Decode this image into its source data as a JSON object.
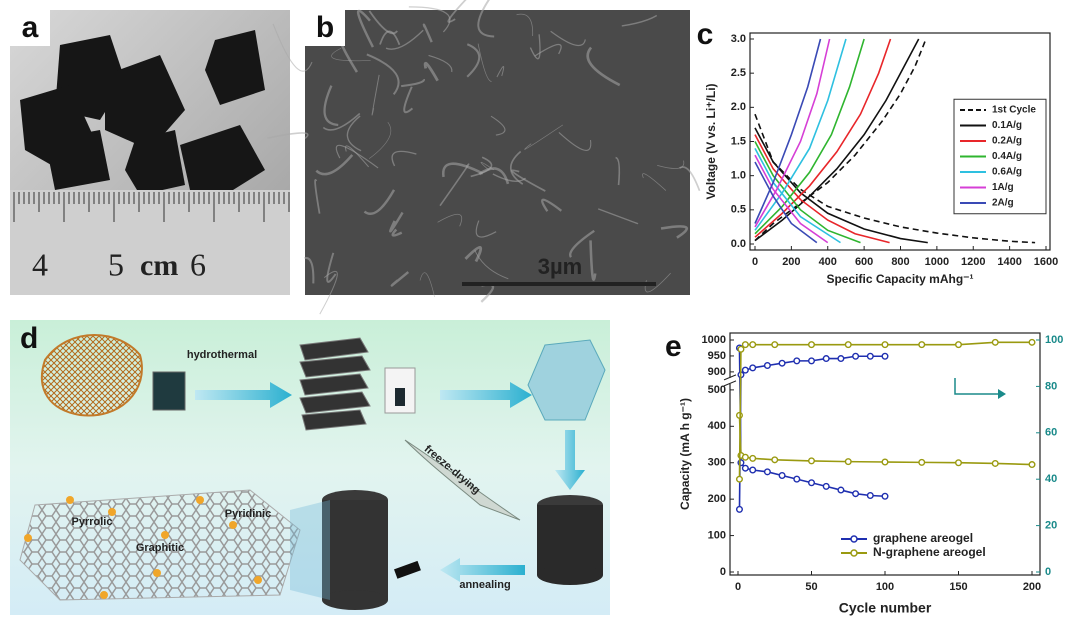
{
  "panels": {
    "a": {
      "label": "a",
      "ruler": [
        "4",
        "5",
        "cm",
        "6"
      ]
    },
    "b": {
      "label": "b",
      "scale_bar": "3µm"
    },
    "c": {
      "label": "c"
    },
    "d": {
      "label": "d",
      "steps": [
        "hydrothermal",
        "freeze-drying",
        "annealing"
      ],
      "sites": [
        "Pyrrolic",
        "Graphitic",
        "Pyridinic"
      ]
    },
    "e": {
      "label": "e"
    }
  },
  "chart_data": [
    {
      "type": "line",
      "xlabel": "Specific Capacity mAhg⁻¹",
      "ylabel": "Voltage (V vs. Li⁺/Li)",
      "xlim": [
        0,
        1600
      ],
      "xticks": [
        0,
        200,
        400,
        600,
        800,
        1000,
        1200,
        1400,
        1600
      ],
      "ylim": [
        0,
        3
      ],
      "yticks": [
        {
          "value": 0,
          "label": "0.0"
        },
        0.5,
        {
          "value": 1,
          "label": "1.0"
        },
        1.5,
        {
          "value": 2,
          "label": "2.0"
        },
        2.5,
        {
          "value": 3,
          "label": "3.0"
        }
      ],
      "legend": "center right",
      "series": [
        {
          "name": "1st Cycle",
          "color": "#111111",
          "dash": true,
          "x": [
            0,
            100,
            250,
            400,
            600,
            800,
            1000,
            1200,
            1400,
            1540,
            null,
            0,
            100,
            250,
            400,
            550,
            700,
            800,
            880,
            940
          ],
          "values": [
            1.9,
            1.2,
            0.8,
            0.55,
            0.38,
            0.25,
            0.16,
            0.09,
            0.04,
            0.02,
            null,
            0.05,
            0.3,
            0.6,
            0.9,
            1.3,
            1.8,
            2.2,
            2.6,
            3.0
          ]
        },
        {
          "name": "0.1A/g",
          "color": "#111111",
          "x": [
            0,
            100,
            250,
            400,
            600,
            800,
            950,
            null,
            0,
            150,
            300,
            450,
            600,
            720,
            820,
            900
          ],
          "values": [
            1.7,
            1.2,
            0.75,
            0.45,
            0.22,
            0.08,
            0.02,
            null,
            0.05,
            0.35,
            0.7,
            1.1,
            1.6,
            2.1,
            2.6,
            3.0
          ]
        },
        {
          "name": "0.2A/g",
          "color": "#e8262a",
          "x": [
            0,
            100,
            250,
            400,
            550,
            740,
            null,
            0,
            150,
            300,
            450,
            580,
            680,
            745
          ],
          "values": [
            1.6,
            1.1,
            0.65,
            0.35,
            0.15,
            0.02,
            null,
            0.1,
            0.45,
            0.85,
            1.35,
            1.9,
            2.5,
            3.0
          ]
        },
        {
          "name": "0.4A/g",
          "color": "#2fb52f",
          "x": [
            0,
            100,
            250,
            400,
            580,
            null,
            0,
            150,
            300,
            420,
            520,
            600
          ],
          "values": [
            1.5,
            1.0,
            0.5,
            0.2,
            0.02,
            null,
            0.15,
            0.55,
            1.05,
            1.6,
            2.3,
            3.0
          ]
        },
        {
          "name": "0.6A/g",
          "color": "#2ec0e0",
          "x": [
            0,
            100,
            250,
            470,
            null,
            0,
            150,
            300,
            400,
            500
          ],
          "values": [
            1.4,
            0.9,
            0.4,
            0.02,
            null,
            0.2,
            0.75,
            1.4,
            2.1,
            3.0
          ]
        },
        {
          "name": "1A/g",
          "color": "#d63fd6",
          "x": [
            0,
            100,
            250,
            400,
            null,
            0,
            120,
            250,
            340,
            410
          ],
          "values": [
            1.3,
            0.8,
            0.3,
            0.02,
            null,
            0.25,
            0.8,
            1.5,
            2.2,
            3.0
          ]
        },
        {
          "name": "2A/g",
          "color": "#3a4ab5",
          "x": [
            0,
            100,
            200,
            340,
            null,
            0,
            100,
            200,
            290,
            360
          ],
          "values": [
            1.2,
            0.7,
            0.3,
            0.02,
            null,
            0.3,
            0.9,
            1.6,
            2.3,
            3.0
          ]
        }
      ]
    },
    {
      "type": "line",
      "xlabel": "Cycle number",
      "ylabel": "Capacity (mA h g⁻¹)",
      "xlim": [
        0,
        200
      ],
      "xticks": [
        0,
        50,
        100,
        150,
        200
      ],
      "ylim": [
        0,
        1000
      ],
      "ybreak": [
        500,
        900
      ],
      "yticks": [
        0,
        100,
        200,
        300,
        400,
        500,
        900,
        950,
        1000
      ],
      "y2lim": [
        0,
        100
      ],
      "y2ticks": [
        0,
        20,
        40,
        60,
        80,
        100
      ],
      "legend": "lower right",
      "markers": true,
      "series": [
        {
          "name": "graphene areogel",
          "color": "#1f2fb0",
          "x": [
            1,
            2,
            5,
            10,
            20,
            30,
            40,
            50,
            60,
            70,
            80,
            90,
            100
          ],
          "values": [
            975,
            300,
            285,
            280,
            275,
            265,
            255,
            245,
            235,
            225,
            215,
            210,
            208
          ],
          "y2_values": [
            27,
            85,
            87,
            88,
            89,
            90,
            91,
            91,
            92,
            92,
            93,
            93,
            93
          ]
        },
        {
          "name": "N-graphene areogel",
          "color": "#9a9a10",
          "x": [
            1,
            2,
            5,
            10,
            25,
            50,
            75,
            100,
            125,
            150,
            175,
            200
          ],
          "values": [
            430,
            320,
            315,
            312,
            308,
            305,
            303,
            302,
            301,
            300,
            298,
            295
          ],
          "y2_values": [
            40,
            96,
            98,
            98,
            98,
            98,
            98,
            98,
            98,
            98,
            99,
            99
          ]
        }
      ]
    }
  ]
}
